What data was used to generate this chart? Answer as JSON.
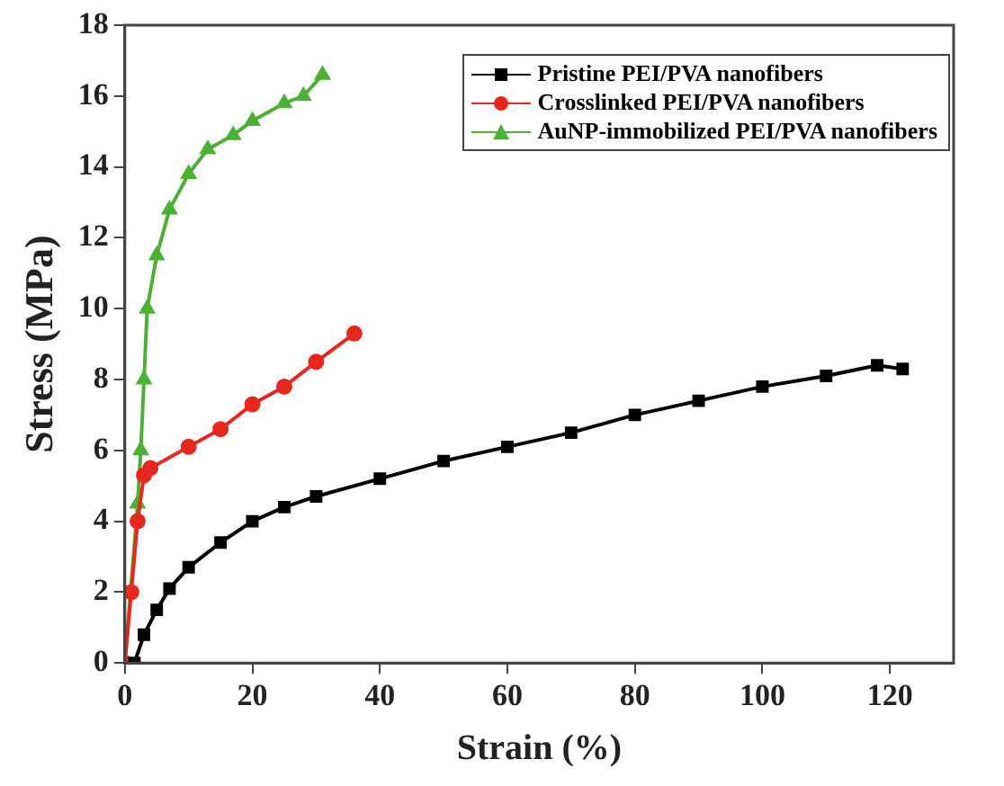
{
  "chart_data": {
    "type": "line",
    "xlabel": "Strain (%)",
    "ylabel": "Stress (MPa)",
    "xlim": [
      0,
      130
    ],
    "xticks": [
      0,
      20,
      40,
      60,
      80,
      100,
      120
    ],
    "ylim": [
      0,
      18
    ],
    "yticks": [
      0,
      2,
      4,
      6,
      8,
      10,
      12,
      14,
      16,
      18
    ],
    "grid": false,
    "legend": "top right",
    "line_style": "solid",
    "series": [
      {
        "name": "Pristine PEI/PVA nanofibers",
        "color": "#000000",
        "marker": "square",
        "x": [
          1.5,
          3,
          5,
          7,
          10,
          15,
          20,
          25,
          30,
          40,
          50,
          60,
          70,
          80,
          90,
          100,
          110,
          118,
          122
        ],
        "values": [
          0,
          0.8,
          1.5,
          2.1,
          2.7,
          3.4,
          4.0,
          4.4,
          4.7,
          5.2,
          5.7,
          6.1,
          6.5,
          7.0,
          7.4,
          7.8,
          8.1,
          8.4,
          8.3
        ]
      },
      {
        "name": "Crosslinked PEI/PVA nanofibers",
        "color": "#e8281e",
        "marker": "circle",
        "x": [
          0,
          1,
          2,
          3,
          4,
          10,
          15,
          20,
          25,
          30,
          36
        ],
        "values": [
          0,
          2,
          4,
          5.3,
          5.5,
          6.1,
          6.6,
          7.3,
          7.8,
          8.5,
          9.3
        ]
      },
      {
        "name": "AuNP-immobilized PEI/PVA nanofibers",
        "color": "#4cb034",
        "marker": "triangle",
        "x": [
          0,
          2,
          2.5,
          3,
          3.5,
          5,
          7,
          10,
          13,
          17,
          20,
          25,
          28,
          31
        ],
        "values": [
          0,
          4.5,
          6,
          8,
          10,
          11.5,
          12.8,
          13.8,
          14.5,
          14.9,
          15.3,
          15.8,
          16,
          16.6
        ]
      }
    ]
  }
}
